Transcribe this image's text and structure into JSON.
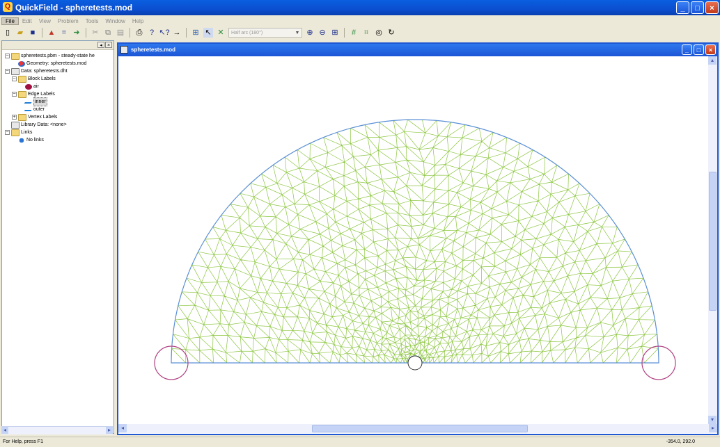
{
  "window": {
    "title": "QuickField - spheretests.mod",
    "app_icon_glyph": "Q"
  },
  "menu": [
    "File",
    "Edit",
    "View",
    "Problem",
    "Tools",
    "Window",
    "Help"
  ],
  "toolbar": {
    "icons": [
      "new-icon",
      "open-icon",
      "save-icon",
      "editor-icon",
      "equals-icon",
      "arrow-icon",
      "cut-icon",
      "copy-icon",
      "paste-icon",
      "print-icon",
      "help-icon",
      "context-help-icon",
      "goto-icon",
      "tree-icon",
      "pointer-icon",
      "tool-icon"
    ],
    "combo_value": "Half arc (180°)",
    "icons_right": [
      "zoom-in-icon",
      "zoom-out-icon",
      "grid-icon",
      "mesh-icon",
      "mesh-remove-icon",
      "target-icon",
      "refresh-icon"
    ]
  },
  "tree": {
    "items": [
      {
        "label": "spheretests.pbm - steady-state he",
        "icon": "folder",
        "expander": "−",
        "indent": 0
      },
      {
        "label": "Geometry: spheretests.mod",
        "icon": "geo",
        "indent": 1
      },
      {
        "label": "Data: spheretests.dht",
        "icon": "doc",
        "expander": "−",
        "indent": 0
      },
      {
        "label": "Block Labels",
        "icon": "folder",
        "expander": "−",
        "indent": 1
      },
      {
        "label": "air",
        "icon": "block",
        "indent": 2
      },
      {
        "label": "Edge Labels",
        "icon": "folder",
        "expander": "−",
        "indent": 1
      },
      {
        "label": "inner",
        "icon": "edge",
        "indent": 2,
        "selected": true
      },
      {
        "label": "outer",
        "icon": "edge",
        "indent": 2
      },
      {
        "label": "Vertex Labels",
        "icon": "folder",
        "expander": "+",
        "indent": 1
      },
      {
        "label": "Library Data: <none>",
        "icon": "doc",
        "indent": 0
      },
      {
        "label": "Links",
        "icon": "folder",
        "expander": "−",
        "indent": 0
      },
      {
        "label": "No links",
        "icon": "link",
        "indent": 1
      }
    ]
  },
  "child_window": {
    "title": "spheretests.mod"
  },
  "status": {
    "help_text": "For Help, press F1",
    "coordinates": "-354.0, 292.0"
  },
  "colors": {
    "mesh": "#8cc63f",
    "boundary": "#5b8fd9",
    "vertex_circle": "#b04080",
    "title_blue": "#0b4fd0"
  }
}
